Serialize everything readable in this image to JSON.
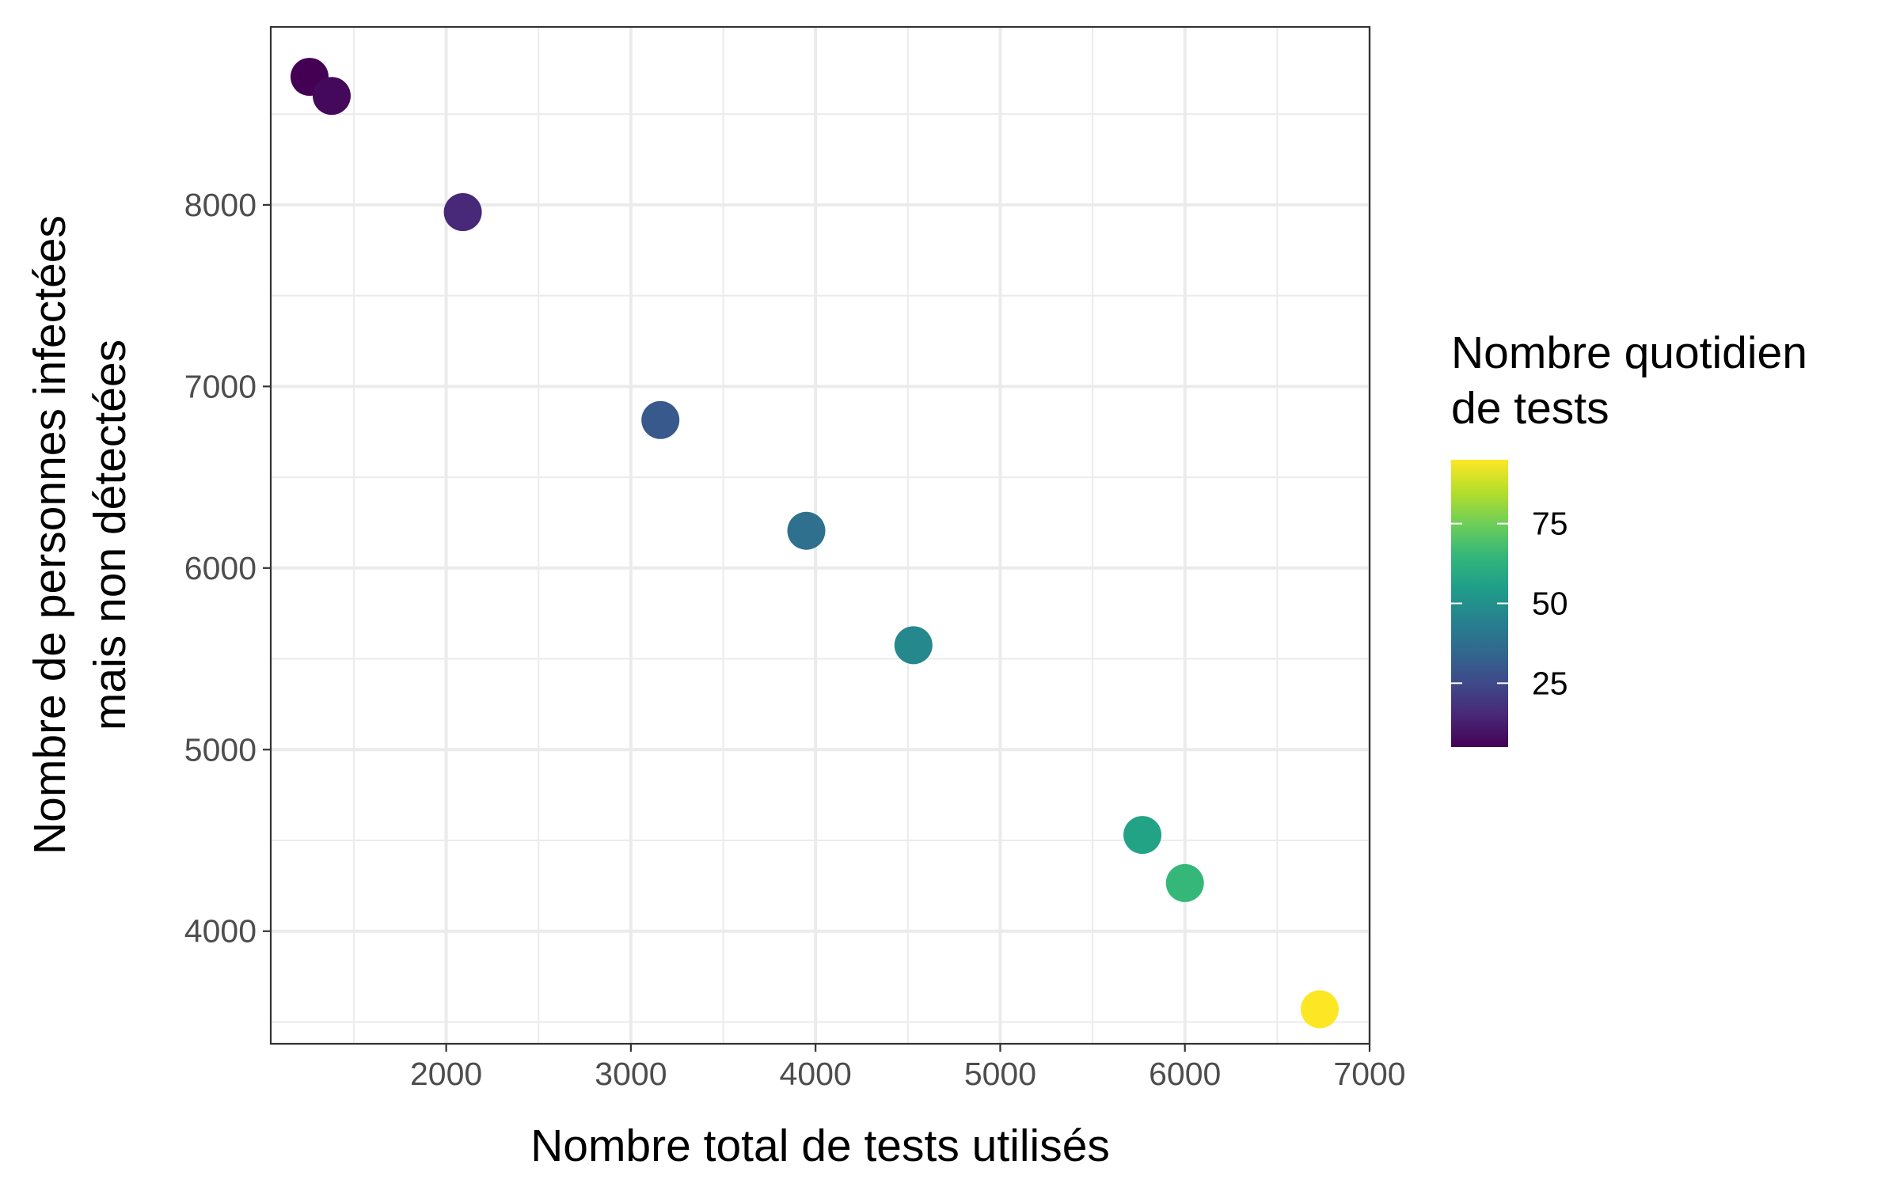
{
  "chart_data": {
    "type": "scatter",
    "title": "",
    "xlabel": "Nombre total de tests utilisés",
    "ylabel_lines": [
      "Nombre de personnes infectées",
      "mais non détectées"
    ],
    "xlim": [
      1050,
      7000
    ],
    "ylim": [
      3380,
      8980
    ],
    "x_ticks": [
      2000,
      3000,
      4000,
      5000,
      6000,
      7000
    ],
    "x_tick_labels": [
      "2000",
      "3000",
      "4000",
      "5000",
      "6000",
      "7000"
    ],
    "y_ticks": [
      4000,
      5000,
      6000,
      7000,
      8000
    ],
    "y_tick_labels": [
      "4000",
      "5000",
      "6000",
      "7000",
      "8000"
    ],
    "grid": true,
    "color_variable": "Nombre quotidien de tests",
    "points": [
      {
        "x": 1260,
        "y": 8705,
        "color_value": 5
      },
      {
        "x": 1380,
        "y": 8600,
        "color_value": 7
      },
      {
        "x": 2090,
        "y": 7960,
        "color_value": 15
      },
      {
        "x": 3160,
        "y": 6815,
        "color_value": 30
      },
      {
        "x": 3950,
        "y": 6205,
        "color_value": 38
      },
      {
        "x": 4530,
        "y": 5575,
        "color_value": 47
      },
      {
        "x": 5770,
        "y": 4530,
        "color_value": 57
      },
      {
        "x": 6000,
        "y": 4265,
        "color_value": 65
      },
      {
        "x": 6730,
        "y": 3570,
        "color_value": 95
      }
    ]
  },
  "legend": {
    "title_lines": [
      "Nombre quotidien",
      "de tests"
    ],
    "range": [
      5,
      95
    ],
    "breaks": [
      25,
      50,
      75
    ],
    "break_labels": [
      "25",
      "50",
      "75"
    ],
    "position": "right",
    "colormap": [
      "#440154",
      "#482878",
      "#3e4989",
      "#31688e",
      "#26828e",
      "#1f9e89",
      "#35b779",
      "#6ece58",
      "#b5de2b",
      "#fde725"
    ]
  }
}
